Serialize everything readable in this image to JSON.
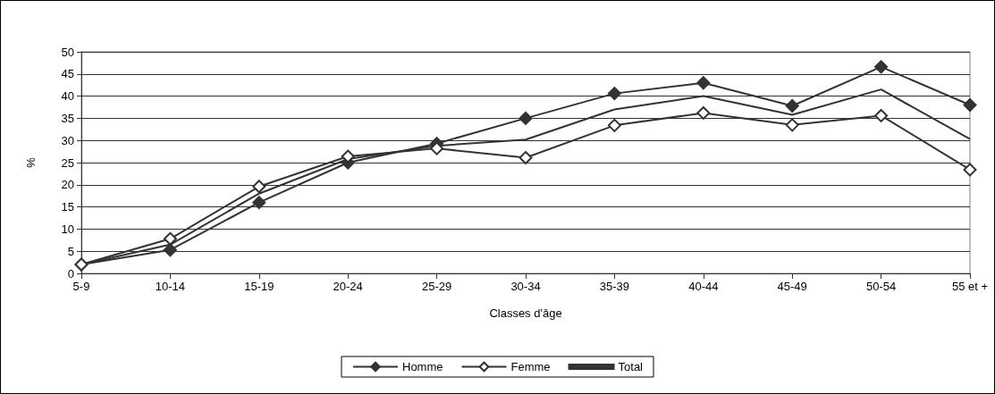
{
  "chart_data": {
    "type": "line",
    "xlabel": "Classes d'âge",
    "ylabel": "%",
    "categories": [
      "5-9",
      "10-14",
      "15-19",
      "20-24",
      "25-29",
      "30-34",
      "35-39",
      "40-44",
      "45-49",
      "50-54",
      "55 et +"
    ],
    "series": [
      {
        "name": "Homme",
        "color": "#333333",
        "marker": "diamond",
        "values": [
          2,
          5.3,
          16,
          25,
          29.3,
          35,
          40.6,
          43,
          37.8,
          46.6,
          38
        ]
      },
      {
        "name": "Femme",
        "color": "#333333",
        "marker": "diamond",
        "values": [
          2,
          7.8,
          19.6,
          26.4,
          28.2,
          26.1,
          33.4,
          36.2,
          33.5,
          35.6,
          23.4
        ]
      },
      {
        "name": "Total",
        "color": "#333333",
        "marker": "none",
        "values": [
          2,
          6.5,
          18,
          25.8,
          28.8,
          30.2,
          37,
          40,
          35.8,
          41.5,
          30.3
        ]
      }
    ],
    "ylim": [
      0,
      50
    ],
    "yticks": [
      0,
      5,
      10,
      15,
      20,
      25,
      30,
      35,
      40,
      45,
      50
    ],
    "grid": "y",
    "legend": "bottom",
    "line_style": "solid"
  }
}
